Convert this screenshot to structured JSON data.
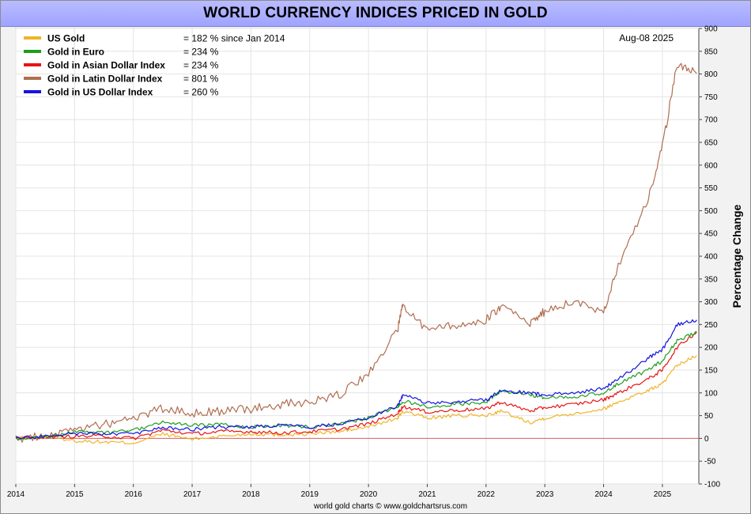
{
  "title": "WORLD CURRENCY INDICES PRICED IN GOLD",
  "date_label": "Aug-08  2025",
  "credit": "world gold charts © www.goldchartsrus.com",
  "legend": [
    {
      "label": "US Gold",
      "value": "= 182 % since Jan 2014",
      "color": "#f0b428"
    },
    {
      "label": "Gold in Euro",
      "value": "= 234 %",
      "color": "#1e9e1e"
    },
    {
      "label": "Gold in Asian Dollar Index",
      "value": "= 234 %",
      "color": "#e81414"
    },
    {
      "label": "Gold in Latin Dollar Index",
      "value": "= 801 %",
      "color": "#b06e50"
    },
    {
      "label": "Gold in US Dollar Index",
      "value": "= 260 %",
      "color": "#1414e0"
    }
  ],
  "chart_data": {
    "type": "line",
    "title": "WORLD CURRENCY INDICES PRICED IN GOLD",
    "xlabel": "",
    "ylabel": "Percentage Change",
    "xlim": [
      2014,
      2025.62
    ],
    "ylim": [
      -100,
      900
    ],
    "x_ticks": [
      "2014",
      "2015",
      "2016",
      "2017",
      "2018",
      "2019",
      "2020",
      "2021",
      "2022",
      "2023",
      "2024",
      "2025"
    ],
    "y_ticks": [
      -100,
      -50,
      0,
      50,
      100,
      150,
      200,
      250,
      300,
      350,
      400,
      450,
      500,
      550,
      600,
      650,
      700,
      750,
      800,
      850,
      900
    ],
    "grid": true,
    "legend_position": "top-left",
    "x": [
      "2014-01",
      "2014-07",
      "2015-01",
      "2015-07",
      "2016-01",
      "2016-07",
      "2017-01",
      "2017-07",
      "2018-01",
      "2018-07",
      "2019-01",
      "2019-07",
      "2020-01",
      "2020-07",
      "2020-08",
      "2021-01",
      "2021-07",
      "2022-01",
      "2022-04",
      "2022-10",
      "2023-01",
      "2023-07",
      "2024-01",
      "2024-04",
      "2024-10",
      "2025-01",
      "2025-04",
      "2025-08"
    ],
    "series": [
      {
        "name": "US Gold",
        "color": "#f0b428",
        "values": [
          0,
          5,
          -5,
          -8,
          -10,
          10,
          -2,
          5,
          10,
          8,
          10,
          15,
          25,
          45,
          60,
          45,
          50,
          50,
          60,
          35,
          45,
          55,
          65,
          80,
          105,
          120,
          160,
          182
        ]
      },
      {
        "name": "Gold in Euro",
        "color": "#1e9e1e",
        "values": [
          0,
          3,
          15,
          12,
          18,
          35,
          28,
          30,
          25,
          28,
          25,
          32,
          45,
          70,
          82,
          70,
          75,
          80,
          105,
          95,
          90,
          92,
          100,
          120,
          150,
          170,
          215,
          234
        ]
      },
      {
        "name": "Gold in Asian Dollar Index",
        "color": "#e81414",
        "values": [
          0,
          3,
          5,
          5,
          0,
          18,
          10,
          15,
          15,
          12,
          15,
          20,
          32,
          55,
          70,
          58,
          62,
          65,
          80,
          60,
          68,
          75,
          85,
          100,
          130,
          150,
          200,
          234
        ]
      },
      {
        "name": "Gold in Latin Dollar Index",
        "color": "#b06e50",
        "values": [
          0,
          5,
          20,
          30,
          45,
          65,
          55,
          60,
          65,
          75,
          80,
          95,
          140,
          240,
          290,
          240,
          250,
          260,
          290,
          250,
          280,
          300,
          280,
          380,
          520,
          640,
          820,
          801
        ]
      },
      {
        "name": "Gold in US Dollar Index",
        "color": "#1414e0",
        "values": [
          0,
          5,
          10,
          10,
          10,
          25,
          20,
          25,
          25,
          28,
          25,
          32,
          45,
          72,
          95,
          78,
          80,
          85,
          105,
          100,
          95,
          100,
          110,
          130,
          175,
          195,
          250,
          260
        ]
      }
    ]
  }
}
